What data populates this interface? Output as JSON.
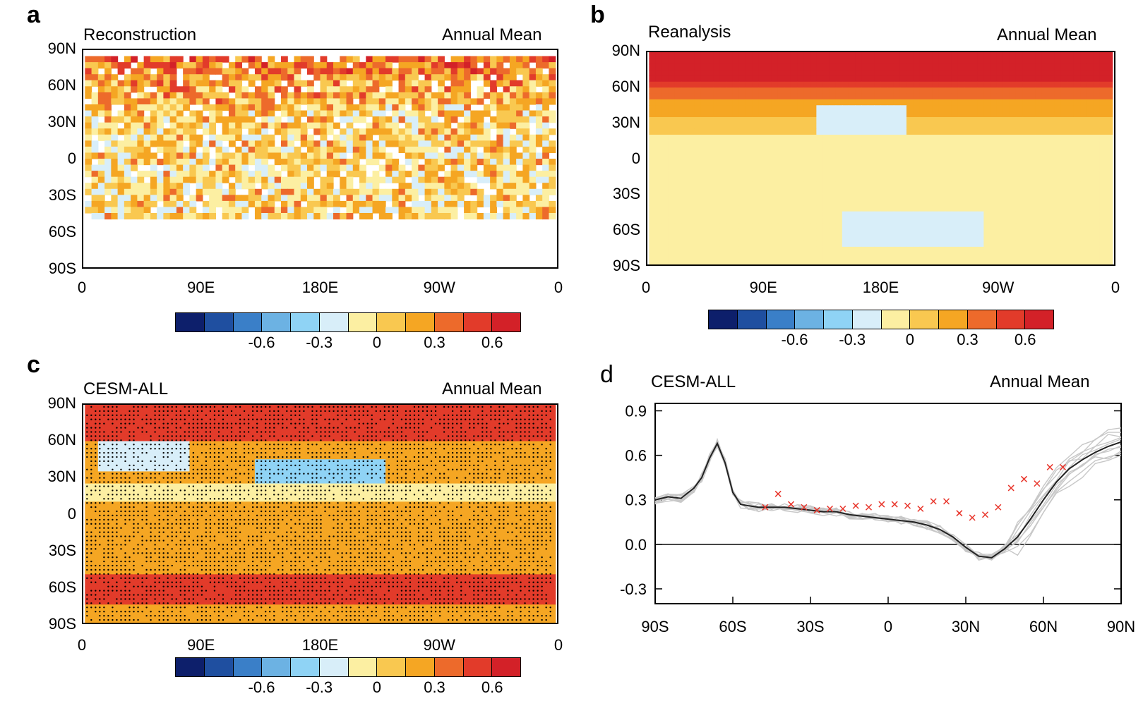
{
  "panels": {
    "a": {
      "letter": "a",
      "left_title": "Reconstruction",
      "right_title": "Annual Mean"
    },
    "b": {
      "letter": "b",
      "left_title": "Reanalysis",
      "right_title": "Annual Mean"
    },
    "c": {
      "letter": "c",
      "left_title": "CESM-ALL",
      "right_title": "Annual Mean"
    },
    "d": {
      "letter": "d",
      "left_title": "CESM-ALL",
      "right_title": "Annual Mean"
    }
  },
  "map_axes": {
    "lat_ticks": [
      "90N",
      "60N",
      "30N",
      "0",
      "30S",
      "60S",
      "90S"
    ],
    "lon_ticks": [
      "0",
      "90E",
      "180E",
      "90W",
      "0"
    ]
  },
  "colorbar": {
    "colors": [
      "#0d1f6b",
      "#1f4fa0",
      "#3a7fc8",
      "#6cb2e3",
      "#8fd3f5",
      "#d8eef9",
      "#fcefa2",
      "#f9c850",
      "#f5a623",
      "#ed6a2b",
      "#e23b2a",
      "#d32128"
    ],
    "tick_labels": [
      "-0.6",
      "-0.3",
      "0",
      "0.3",
      "0.6"
    ]
  },
  "chart_data": [
    {
      "type": "heatmap",
      "panel": "a",
      "title": "Reconstruction",
      "xlabel": "",
      "ylabel": "",
      "x_ticks": [
        "0",
        "90E",
        "180E",
        "90W",
        "0"
      ],
      "y_ticks": [
        "90N",
        "60N",
        "30N",
        "0",
        "30S",
        "60S",
        "90S"
      ],
      "value_range": [
        -0.9,
        0.9
      ]
    },
    {
      "type": "heatmap",
      "panel": "b",
      "title": "Reanalysis",
      "x_ticks": [
        "0",
        "90E",
        "180E",
        "90W",
        "0"
      ],
      "y_ticks": [
        "90N",
        "60N",
        "30N",
        "0",
        "30S",
        "60S",
        "90S"
      ],
      "value_range": [
        -0.9,
        0.9
      ]
    },
    {
      "type": "heatmap",
      "panel": "c",
      "title": "CESM-ALL",
      "x_ticks": [
        "0",
        "90E",
        "180E",
        "90W",
        "0"
      ],
      "y_ticks": [
        "90N",
        "60N",
        "30N",
        "0",
        "30S",
        "60S",
        "90S"
      ],
      "value_range": [
        -0.9,
        0.9
      ]
    },
    {
      "type": "line",
      "panel": "d",
      "title": "CESM-ALL",
      "x_ticks": [
        "90S",
        "60S",
        "30S",
        "0",
        "30N",
        "60N",
        "90N"
      ],
      "y_ticks": [
        "0.9",
        "0.6",
        "0.3",
        "0.0",
        "-0.3"
      ],
      "xlim": [
        -90,
        90
      ],
      "ylim": [
        -0.4,
        0.95
      ],
      "x": [
        -90,
        -85,
        -80,
        -75,
        -72,
        -69,
        -66,
        -63,
        -60,
        -57,
        -54,
        -50,
        -45,
        -40,
        -35,
        -30,
        -25,
        -20,
        -15,
        -10,
        -5,
        0,
        5,
        10,
        15,
        20,
        25,
        30,
        35,
        40,
        45,
        50,
        55,
        60,
        65,
        70,
        75,
        80,
        85,
        90
      ],
      "series": [
        {
          "values": [
            0.3,
            0.32,
            0.31,
            0.38,
            0.45,
            0.58,
            0.68,
            0.55,
            0.35,
            0.27,
            0.26,
            0.25,
            0.25,
            0.25,
            0.24,
            0.23,
            0.22,
            0.22,
            0.2,
            0.19,
            0.18,
            0.17,
            0.16,
            0.15,
            0.13,
            0.1,
            0.05,
            -0.02,
            -0.08,
            -0.09,
            -0.03,
            0.05,
            0.17,
            0.3,
            0.42,
            0.51,
            0.57,
            0.62,
            0.66,
            0.69
          ]
        }
      ],
      "scatter_points": {
        "x": [
          -47.5,
          -42.5,
          -37.5,
          -32.5,
          -27.5,
          -22.5,
          -17.5,
          -12.5,
          -7.5,
          -2.5,
          2.5,
          7.5,
          12.5,
          17.5,
          22.5,
          27.5,
          32.5,
          37.5,
          42.5,
          47.5,
          52.5,
          57.5,
          62.5,
          67.5
        ],
        "y": [
          0.25,
          0.34,
          0.27,
          0.25,
          0.23,
          0.24,
          0.24,
          0.26,
          0.25,
          0.27,
          0.27,
          0.26,
          0.24,
          0.29,
          0.29,
          0.21,
          0.18,
          0.2,
          0.25,
          0.38,
          0.44,
          0.41,
          0.52,
          0.52
        ],
        "marker": "x",
        "color": "#e8352b"
      },
      "ensemble_color": "#c8c8c8",
      "mean_color": "#222222"
    }
  ]
}
